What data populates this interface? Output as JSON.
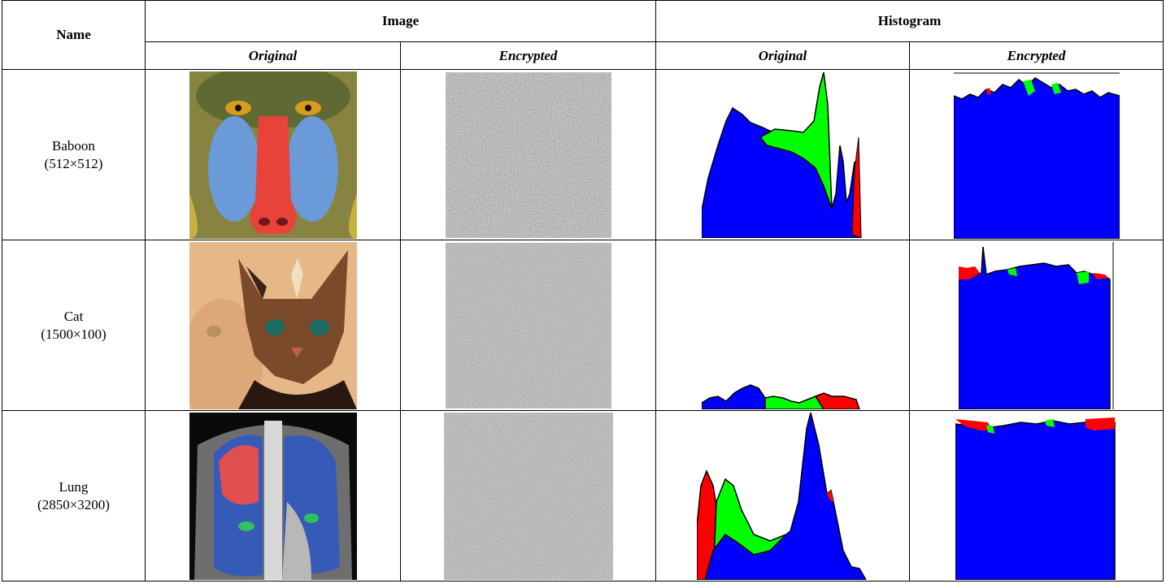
{
  "table": {
    "header": {
      "name": "Name",
      "image": "Image",
      "histogram": "Histogram",
      "subheaders": [
        "Original",
        "Encrypted",
        "Original",
        "Encrypted"
      ]
    },
    "rows": [
      {
        "name": "Baboon",
        "size": "(512×512)"
      },
      {
        "name": "Cat",
        "size": "(1500×100)"
      },
      {
        "name": "Lung",
        "size": "(2850×3200)"
      }
    ]
  }
}
